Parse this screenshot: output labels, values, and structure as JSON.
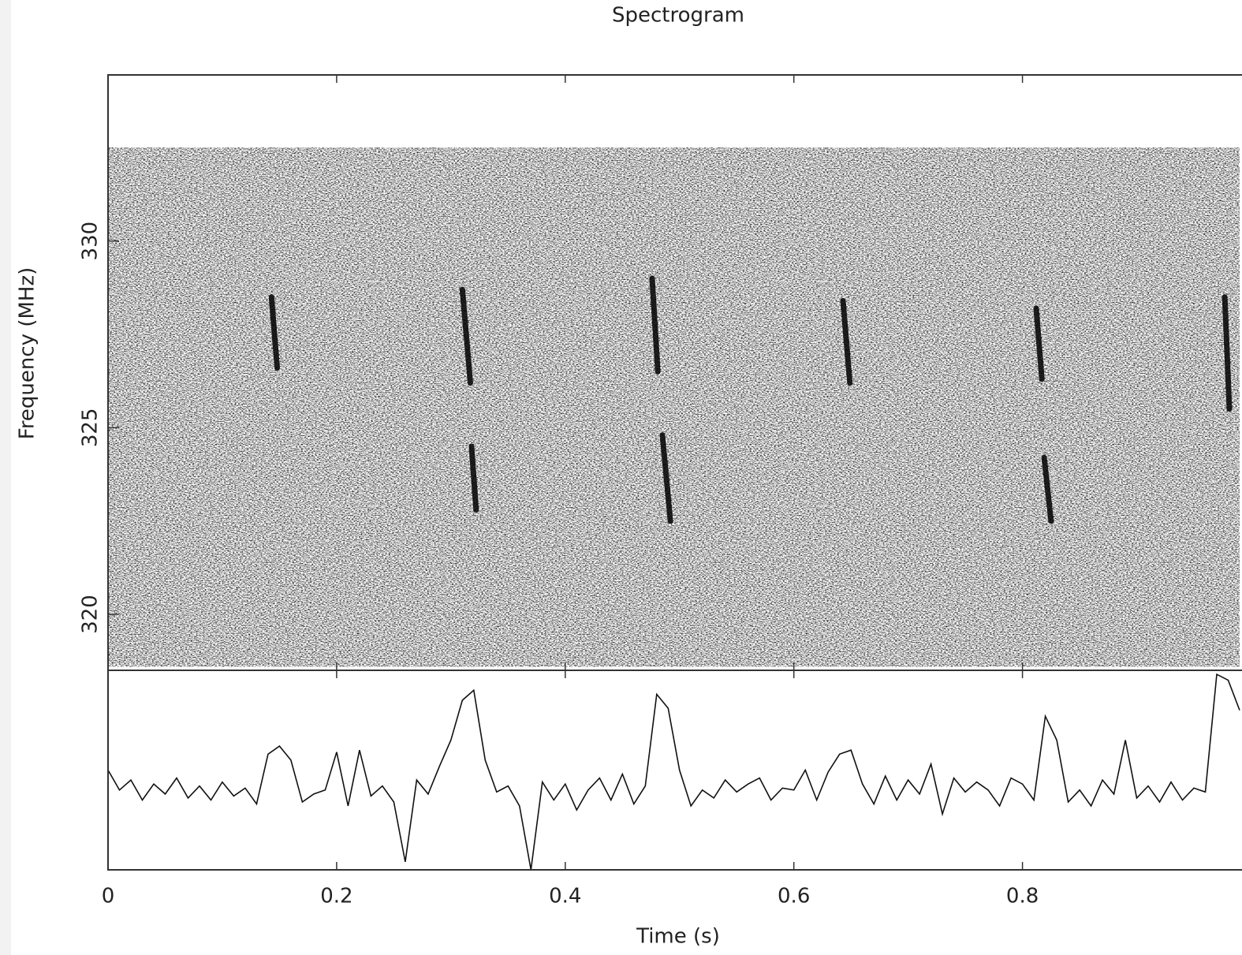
{
  "chart_data": [
    {
      "type": "spectrogram",
      "title": "Spectrogram",
      "ylabel": "Frequency (MHz)",
      "xlim": [
        0,
        0.99
      ],
      "xticks": [
        0,
        0.2,
        0.4,
        0.6,
        0.8
      ],
      "ylim": [
        318.5,
        334.45
      ],
      "yticks": [
        320,
        325,
        330
      ],
      "band": [
        318.6,
        332.5
      ],
      "color": "#000000",
      "streaks": [
        {
          "x": [
            0.143,
            0.148
          ],
          "y": [
            328.5,
            326.6
          ]
        },
        {
          "x": [
            0.31,
            0.317
          ],
          "y": [
            328.7,
            326.2
          ]
        },
        {
          "x": [
            0.318,
            0.322
          ],
          "y": [
            324.5,
            322.8
          ]
        },
        {
          "x": [
            0.476,
            0.481
          ],
          "y": [
            329,
            326.5
          ]
        },
        {
          "x": [
            0.485,
            0.492
          ],
          "y": [
            324.8,
            322.5
          ]
        },
        {
          "x": [
            0.643,
            0.649
          ],
          "y": [
            328.4,
            326.2
          ]
        },
        {
          "x": [
            0.812,
            0.817
          ],
          "y": [
            328.2,
            326.3
          ]
        },
        {
          "x": [
            0.819,
            0.825
          ],
          "y": [
            324.2,
            322.5
          ]
        },
        {
          "x": [
            0.977,
            0.981
          ],
          "y": [
            328.5,
            325.5
          ]
        }
      ]
    },
    {
      "type": "line",
      "xlabel": "Time (s)",
      "xlim": [
        0,
        0.99
      ],
      "xticks": [
        0,
        0.2,
        0.4,
        0.6,
        0.8
      ],
      "ylim": [
        0,
        10
      ],
      "color": "#111111",
      "x": [
        0,
        0.01,
        0.02,
        0.03,
        0.04,
        0.05,
        0.06,
        0.07,
        0.08,
        0.09,
        0.1,
        0.11,
        0.12,
        0.13,
        0.14,
        0.15,
        0.16,
        0.17,
        0.18,
        0.19,
        0.2,
        0.21,
        0.22,
        0.23,
        0.24,
        0.25,
        0.26,
        0.27,
        0.28,
        0.29,
        0.3,
        0.31,
        0.32,
        0.33,
        0.34,
        0.35,
        0.36,
        0.37,
        0.38,
        0.39,
        0.4,
        0.41,
        0.42,
        0.43,
        0.44,
        0.45,
        0.46,
        0.47,
        0.48,
        0.49,
        0.5,
        0.51,
        0.52,
        0.53,
        0.54,
        0.55,
        0.56,
        0.57,
        0.58,
        0.59,
        0.6,
        0.61,
        0.62,
        0.63,
        0.64,
        0.65,
        0.66,
        0.67,
        0.68,
        0.69,
        0.7,
        0.71,
        0.72,
        0.73,
        0.74,
        0.75,
        0.76,
        0.77,
        0.78,
        0.79,
        0.8,
        0.81,
        0.82,
        0.83,
        0.84,
        0.85,
        0.86,
        0.87,
        0.88,
        0.89,
        0.9,
        0.91,
        0.92,
        0.93,
        0.94,
        0.95,
        0.96,
        0.97,
        0.98,
        0.99
      ],
      "values": [
        5,
        4,
        4.5,
        3.5,
        4.3,
        3.8,
        4.6,
        3.6,
        4.2,
        3.5,
        4.4,
        3.7,
        4.1,
        3.3,
        5.8,
        6.2,
        5.5,
        3.4,
        3.8,
        4.0,
        5.9,
        3.2,
        6.0,
        3.7,
        4.2,
        3.4,
        0.4,
        4.5,
        3.8,
        5.2,
        6.5,
        8.5,
        9.0,
        5.5,
        3.9,
        4.2,
        3.2,
        0.0,
        4.4,
        3.5,
        4.3,
        3.0,
        4.0,
        4.6,
        3.5,
        4.8,
        3.3,
        4.2,
        8.8,
        8.1,
        5.0,
        3.2,
        4.0,
        3.6,
        4.5,
        3.9,
        4.3,
        4.6,
        3.5,
        4.1,
        4.0,
        5.0,
        3.5,
        4.9,
        5.8,
        6.0,
        4.3,
        3.3,
        4.7,
        3.5,
        4.5,
        3.8,
        5.3,
        2.8,
        4.6,
        3.9,
        4.4,
        4.0,
        3.2,
        4.6,
        4.3,
        3.5,
        7.7,
        6.5,
        3.4,
        4.0,
        3.2,
        4.5,
        3.8,
        6.5,
        3.6,
        4.2,
        3.4,
        4.4,
        3.5,
        4.1,
        3.9,
        9.8,
        9.5,
        8.0
      ]
    }
  ]
}
